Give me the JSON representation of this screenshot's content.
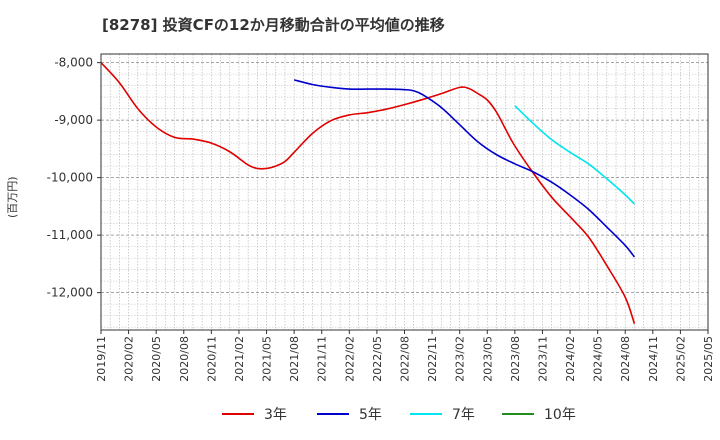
{
  "chart_data": {
    "type": "line",
    "title": "[8278]  投資CFの12か月移動合計の平均値の推移",
    "ylabel": "(百万円)",
    "xlabel": "",
    "ylim": [
      -12650,
      -7850
    ],
    "yticks": [
      -8000,
      -9000,
      -10000,
      -11000,
      -12000
    ],
    "ytick_labels": [
      "-8,000",
      "-9,000",
      "-10,000",
      "-11,000",
      "-12,000"
    ],
    "x_range": [
      "2019-11",
      "2025-05"
    ],
    "xtick_labels": [
      "2019/11",
      "2020/02",
      "2020/05",
      "2020/08",
      "2020/11",
      "2021/02",
      "2021/05",
      "2021/08",
      "2021/11",
      "2022/02",
      "2022/05",
      "2022/08",
      "2022/11",
      "2023/02",
      "2023/05",
      "2023/08",
      "2023/11",
      "2024/02",
      "2024/05",
      "2024/08",
      "2024/11",
      "2025/02",
      "2025/05"
    ],
    "grid": true,
    "legend_position": "bottom",
    "series": [
      {
        "name": "3年",
        "color": "#e00000",
        "points": [
          [
            "2019-11",
            -8000
          ],
          [
            "2020-01",
            -8350
          ],
          [
            "2020-03",
            -8800
          ],
          [
            "2020-05",
            -9120
          ],
          [
            "2020-07",
            -9300
          ],
          [
            "2020-09",
            -9330
          ],
          [
            "2020-11",
            -9400
          ],
          [
            "2021-01",
            -9550
          ],
          [
            "2021-03",
            -9780
          ],
          [
            "2021-04",
            -9840
          ],
          [
            "2021-05",
            -9840
          ],
          [
            "2021-06",
            -9800
          ],
          [
            "2021-07",
            -9720
          ],
          [
            "2021-08",
            -9560
          ],
          [
            "2021-10",
            -9230
          ],
          [
            "2021-12",
            -9010
          ],
          [
            "2022-02",
            -8910
          ],
          [
            "2022-04",
            -8870
          ],
          [
            "2022-06",
            -8810
          ],
          [
            "2022-08",
            -8730
          ],
          [
            "2022-10",
            -8640
          ],
          [
            "2022-12",
            -8540
          ],
          [
            "2023-02",
            -8430
          ],
          [
            "2023-03",
            -8450
          ],
          [
            "2023-04",
            -8540
          ],
          [
            "2023-05",
            -8650
          ],
          [
            "2023-06",
            -8860
          ],
          [
            "2023-07",
            -9160
          ],
          [
            "2023-08",
            -9450
          ],
          [
            "2023-10",
            -9920
          ],
          [
            "2023-12",
            -10340
          ],
          [
            "2024-02",
            -10680
          ],
          [
            "2024-04",
            -11030
          ],
          [
            "2024-06",
            -11530
          ],
          [
            "2024-08",
            -12080
          ],
          [
            "2024-09",
            -12540
          ]
        ]
      },
      {
        "name": "5年",
        "color": "#0000cc",
        "points": [
          [
            "2021-08",
            -8300
          ],
          [
            "2021-10",
            -8380
          ],
          [
            "2021-12",
            -8430
          ],
          [
            "2022-02",
            -8460
          ],
          [
            "2022-04",
            -8460
          ],
          [
            "2022-06",
            -8460
          ],
          [
            "2022-08",
            -8470
          ],
          [
            "2022-09",
            -8490
          ],
          [
            "2022-10",
            -8560
          ],
          [
            "2022-12",
            -8780
          ],
          [
            "2023-02",
            -9080
          ],
          [
            "2023-04",
            -9380
          ],
          [
            "2023-06",
            -9600
          ],
          [
            "2023-08",
            -9760
          ],
          [
            "2023-10",
            -9900
          ],
          [
            "2023-12",
            -10080
          ],
          [
            "2024-02",
            -10300
          ],
          [
            "2024-04",
            -10550
          ],
          [
            "2024-06",
            -10860
          ],
          [
            "2024-08",
            -11180
          ],
          [
            "2024-09",
            -11380
          ]
        ]
      },
      {
        "name": "7年",
        "color": "#00e5ee",
        "points": [
          [
            "2023-08",
            -8750
          ],
          [
            "2023-10",
            -9060
          ],
          [
            "2023-12",
            -9340
          ],
          [
            "2024-02",
            -9560
          ],
          [
            "2024-04",
            -9760
          ],
          [
            "2024-06",
            -10020
          ],
          [
            "2024-08",
            -10300
          ],
          [
            "2024-09",
            -10460
          ]
        ]
      },
      {
        "name": "10年",
        "color": "#228b22",
        "points": []
      }
    ]
  }
}
